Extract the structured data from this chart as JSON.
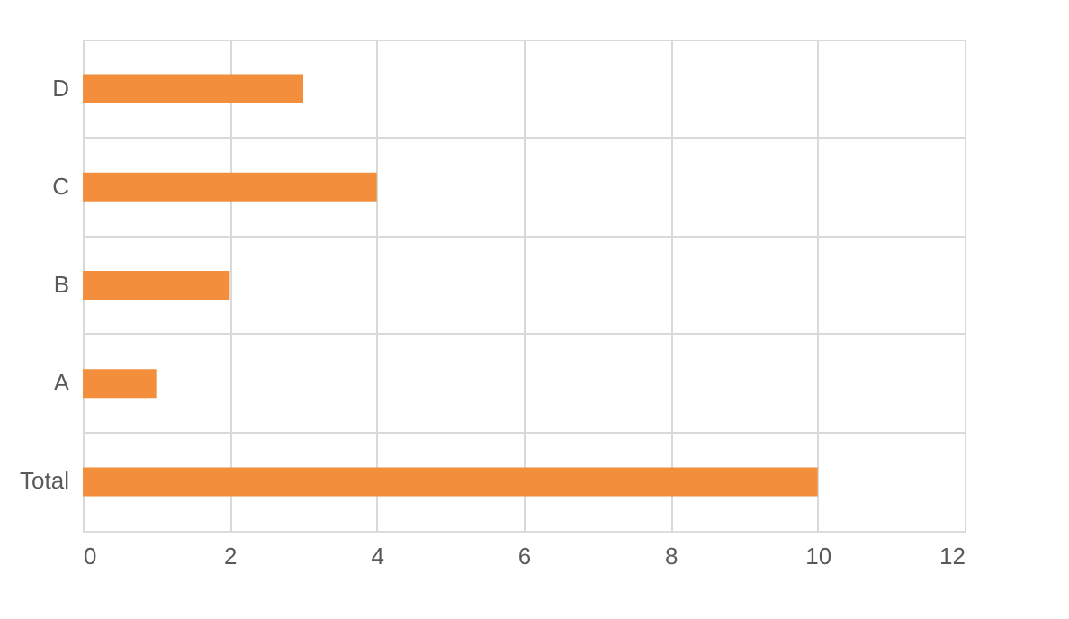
{
  "chart_data": {
    "type": "bar",
    "orientation": "horizontal",
    "categories": [
      "D",
      "C",
      "B",
      "A",
      "Total"
    ],
    "values": [
      3,
      4,
      2,
      1,
      10
    ],
    "color": "#f28e3c",
    "xlim": [
      0,
      12
    ],
    "xticks": [
      0,
      2,
      4,
      6,
      8,
      10,
      12
    ],
    "grid": true
  }
}
